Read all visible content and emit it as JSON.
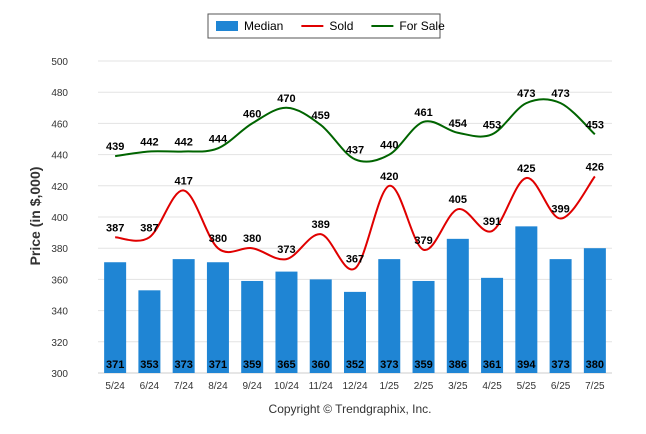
{
  "chart_data": {
    "type": "bar",
    "categories": [
      "5/24",
      "6/24",
      "7/24",
      "8/24",
      "9/24",
      "10/24",
      "11/24",
      "12/24",
      "1/25",
      "2/25",
      "3/25",
      "4/25",
      "5/25",
      "6/25",
      "7/25"
    ],
    "series": [
      {
        "name": "Median",
        "type": "bar",
        "color": "#1f85d4",
        "values": [
          371,
          353,
          373,
          371,
          359,
          365,
          360,
          352,
          373,
          359,
          386,
          361,
          394,
          373,
          380
        ]
      },
      {
        "name": "Sold",
        "type": "line",
        "color": "#e00000",
        "values": [
          387,
          387,
          417,
          380,
          380,
          373,
          389,
          367,
          420,
          379,
          405,
          391,
          425,
          399,
          426
        ]
      },
      {
        "name": "For Sale",
        "type": "line",
        "color": "#006400",
        "values": [
          439,
          442,
          442,
          444,
          460,
          470,
          459,
          437,
          440,
          461,
          454,
          453,
          473,
          473,
          453
        ]
      }
    ],
    "ylabel": "Price (in $,000)",
    "yticks": [
      300,
      320,
      340,
      360,
      380,
      400,
      420,
      440,
      460,
      480,
      500
    ],
    "ylim": [
      300,
      500
    ],
    "grid": true,
    "legend": "top-center",
    "copyright": "Copyright © Trendgraphix, Inc."
  }
}
